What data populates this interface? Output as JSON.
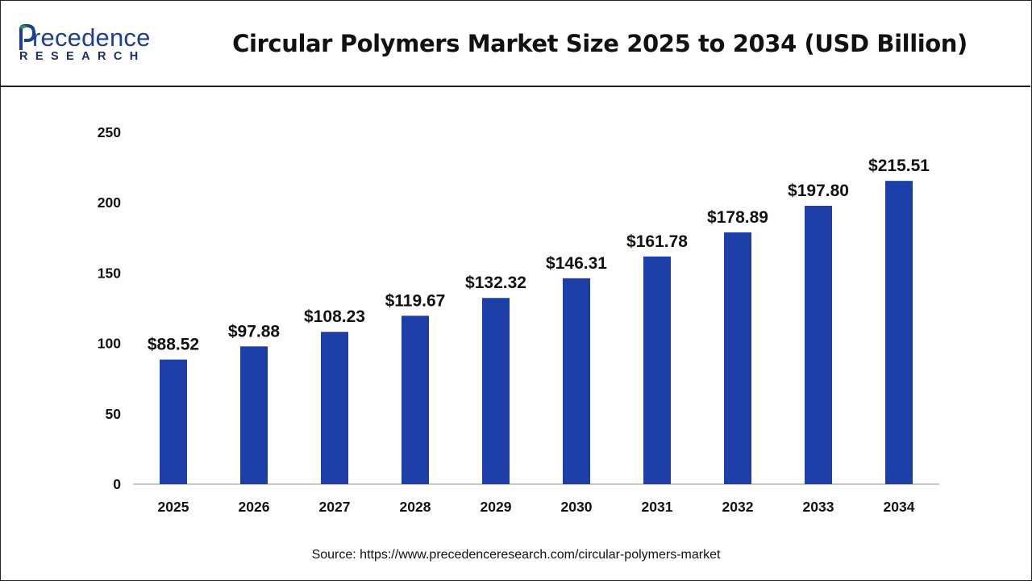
{
  "brand": {
    "name": "recedence",
    "sub": "RESEARCH",
    "logo_icon": "leaf-p-icon",
    "color": "#1c3f95"
  },
  "title": "Circular Polymers Market Size 2025 to 2034 (USD Billion)",
  "source": "Source: https://www.precedenceresearch.com/circular-polymers-market",
  "chart_data": {
    "type": "bar",
    "title": "Circular Polymers Market Size 2025 to 2034 (USD Billion)",
    "xlabel": "",
    "ylabel": "",
    "categories": [
      "2025",
      "2026",
      "2027",
      "2028",
      "2029",
      "2030",
      "2031",
      "2032",
      "2033",
      "2034"
    ],
    "values": [
      88.52,
      97.88,
      108.23,
      119.67,
      132.32,
      146.31,
      161.78,
      178.89,
      197.8,
      215.51
    ],
    "data_labels": [
      "$88.52",
      "$97.88",
      "$108.23",
      "$119.67",
      "$132.32",
      "$146.31",
      "$161.78",
      "$178.89",
      "$197.80",
      "$215.51"
    ],
    "ylim": [
      0,
      250
    ],
    "yticks": [
      0,
      50,
      100,
      150,
      200,
      250
    ],
    "grid": false,
    "legend": "none",
    "bar_color": "#1b3fa6",
    "axis_color": "#b5b5b5"
  }
}
